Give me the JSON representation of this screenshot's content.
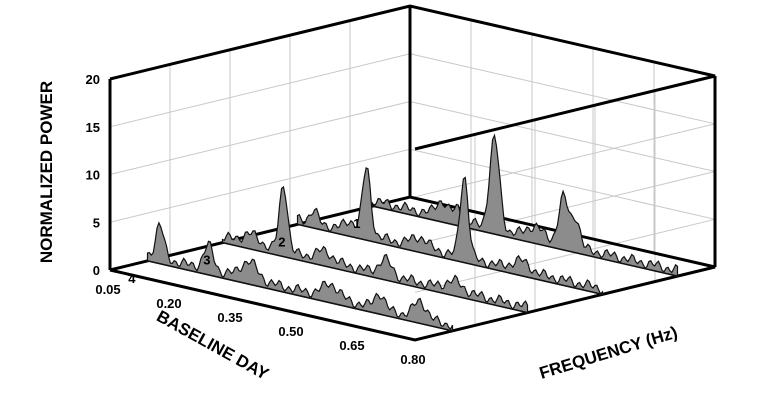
{
  "chart_data": {
    "type": "area",
    "xlabel": "FREQUENCY (Hz)",
    "ylabel": "BASELINE DAY",
    "zlabel": "NORMALIZED POWER",
    "x_ticks": [
      "0.05",
      "0.20",
      "0.35",
      "0.50",
      "0.65",
      "0.80"
    ],
    "y_ticks": [
      "1",
      "2",
      "3",
      "4"
    ],
    "z_ticks": [
      "0",
      "5",
      "10",
      "15",
      "20"
    ],
    "xlim": [
      0.05,
      0.8
    ],
    "zlim": [
      0,
      20
    ],
    "grid": true,
    "series": [
      {
        "day": 1,
        "peaks": [
          [
            0.22,
            1.6,
            0.015
          ],
          [
            0.26,
            1.3,
            0.01
          ],
          [
            0.35,
            9.5,
            0.012
          ],
          [
            0.45,
            1.2,
            0.02
          ],
          [
            0.52,
            5.0,
            0.012
          ],
          [
            0.55,
            3.0,
            0.01
          ]
        ]
      },
      {
        "day": 2,
        "peaks": [
          [
            0.09,
            1.2,
            0.01
          ],
          [
            0.18,
            1.0,
            0.015
          ],
          [
            0.22,
            7.0,
            0.01
          ],
          [
            0.35,
            1.0,
            0.02
          ],
          [
            0.46,
            8.5,
            0.01
          ],
          [
            0.6,
            1.0,
            0.02
          ]
        ]
      },
      {
        "day": 3,
        "peaks": [
          [
            0.12,
            1.0,
            0.02
          ],
          [
            0.2,
            7.0,
            0.01
          ],
          [
            0.3,
            1.0,
            0.02
          ],
          [
            0.45,
            1.6,
            0.015
          ],
          [
            0.62,
            1.0,
            0.02
          ]
        ]
      },
      {
        "day": 4,
        "peaks": [
          [
            0.08,
            3.5,
            0.01
          ],
          [
            0.2,
            2.5,
            0.012
          ],
          [
            0.3,
            1.8,
            0.02
          ],
          [
            0.5,
            1.4,
            0.02
          ],
          [
            0.62,
            1.6,
            0.012
          ],
          [
            0.72,
            1.8,
            0.015
          ]
        ]
      }
    ]
  }
}
